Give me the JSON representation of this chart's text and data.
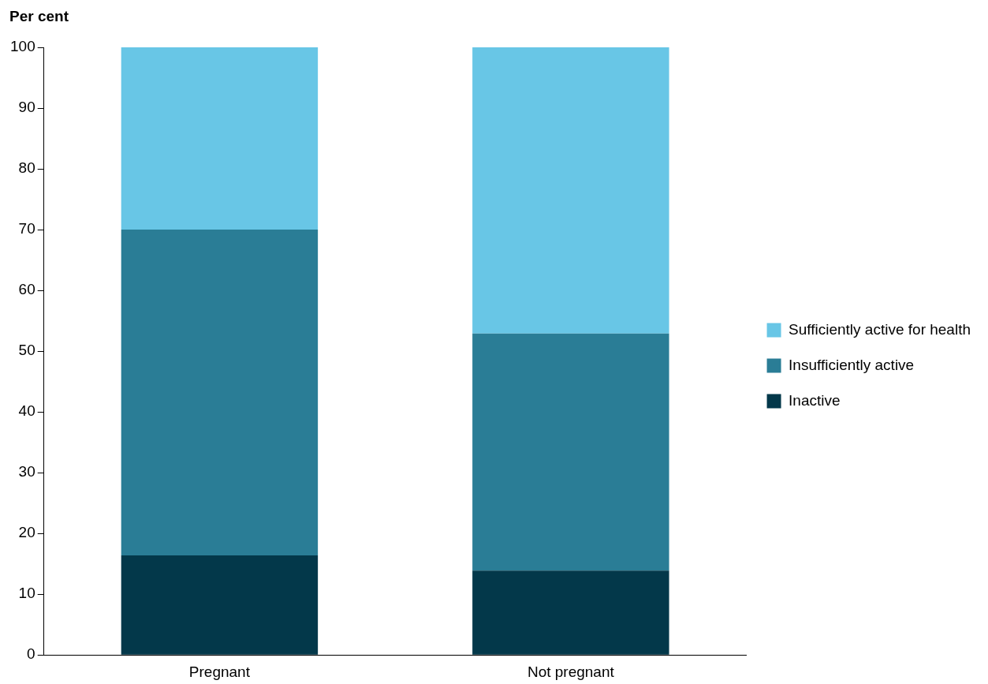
{
  "chart_data": {
    "type": "bar",
    "stacked": true,
    "ylabel": "Per cent",
    "categories": [
      "Pregnant",
      "Not pregnant"
    ],
    "series": [
      {
        "name": "Inactive",
        "color": "#03384a",
        "values": [
          16.4,
          13.9
        ]
      },
      {
        "name": "Insufficiently active",
        "color": "#2a7d96",
        "values": [
          53.6,
          39.0
        ]
      },
      {
        "name": "Sufficiently active for health",
        "color": "#68c6e6",
        "values": [
          30.0,
          47.1
        ]
      }
    ],
    "ylim": [
      0,
      100
    ],
    "yticks": [
      0,
      10,
      20,
      30,
      40,
      50,
      60,
      70,
      80,
      90,
      100
    ],
    "grid": false,
    "legend": "right"
  }
}
